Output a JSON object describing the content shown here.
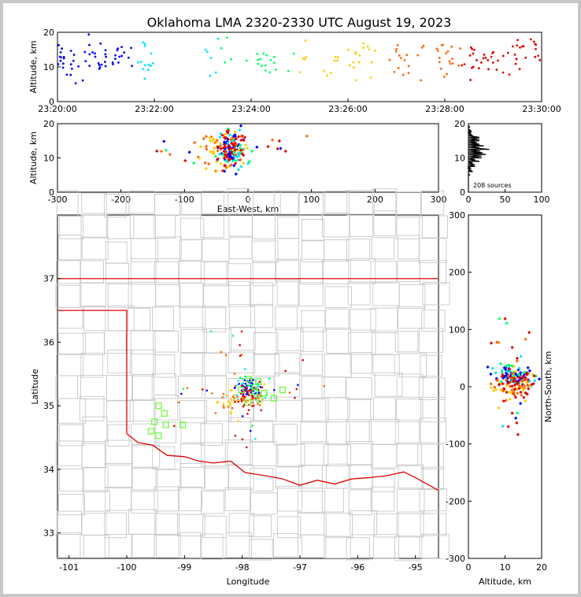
{
  "title": "Oklahoma LMA 2320-2330 UTC August 19, 2023",
  "colors": {
    "frame": "#c8c8c8",
    "county_lines": "#c8c8c8",
    "state_border": "#e00000",
    "station_marker": "#66ff33",
    "time_ramp": [
      "#0000ff",
      "#00e5ff",
      "#00ff66",
      "#ffcc00",
      "#ff6600",
      "#e00000"
    ]
  },
  "chart_data": [
    {
      "id": "time-height",
      "type": "scatter",
      "ylabel": "Altitude, km",
      "xlabel": "",
      "x_ticks": [
        "23:20:00",
        "23:22:00",
        "23:24:00",
        "23:26:00",
        "23:28:00",
        "23:30:00"
      ],
      "xlim_minutes": [
        0,
        10
      ],
      "ylim": [
        0,
        20
      ],
      "y_ticks": [
        0,
        10,
        20
      ]
    },
    {
      "id": "ew-altitude",
      "type": "scatter",
      "xlabel": "East-West, km",
      "ylabel": "Altitude, km",
      "xlim": [
        -300,
        300
      ],
      "x_ticks": [
        -300,
        -200,
        -100,
        0,
        100,
        200,
        300
      ],
      "ylim": [
        0,
        20
      ],
      "y_ticks": [
        0,
        10,
        20
      ]
    },
    {
      "id": "altitude-histogram",
      "type": "bar",
      "annotation": "208 sources",
      "xlim": [
        0,
        100
      ],
      "x_ticks": [
        0,
        50,
        100
      ],
      "ylim": [
        0,
        20
      ],
      "y_ticks": [
        0,
        10,
        20
      ]
    },
    {
      "id": "plan-view",
      "type": "scatter",
      "xlabel": "Longitude",
      "ylabel": "Latitude",
      "xlim": [
        -101.2,
        -94.6
      ],
      "ylim": [
        32.6,
        38.0
      ],
      "x_ticks": [
        -101,
        -100,
        -99,
        -98,
        -97,
        -96,
        -95
      ],
      "y_ticks": [
        33,
        34,
        35,
        36,
        37
      ],
      "stations": [
        {
          "lon": -99.45,
          "lat": 35.0
        },
        {
          "lon": -99.35,
          "lat": 34.88
        },
        {
          "lon": -99.52,
          "lat": 34.75
        },
        {
          "lon": -99.32,
          "lat": 34.7
        },
        {
          "lon": -99.58,
          "lat": 34.6
        },
        {
          "lon": -99.45,
          "lat": 34.53
        },
        {
          "lon": -99.03,
          "lat": 34.7
        },
        {
          "lon": -97.88,
          "lat": 35.42
        },
        {
          "lon": -97.72,
          "lat": 35.38
        },
        {
          "lon": -98.02,
          "lat": 35.25
        },
        {
          "lon": -97.78,
          "lat": 35.22
        },
        {
          "lon": -97.62,
          "lat": 35.2
        },
        {
          "lon": -97.45,
          "lat": 35.12
        },
        {
          "lon": -97.3,
          "lat": 35.25
        },
        {
          "lon": -97.9,
          "lat": 35.05
        },
        {
          "lon": -97.7,
          "lat": 35.1
        }
      ]
    },
    {
      "id": "altitude-ns",
      "type": "scatter",
      "xlabel": "Altitude, km",
      "ylabel": "North-South, km",
      "xlim": [
        0,
        20
      ],
      "x_ticks": [
        0,
        10,
        20
      ],
      "ylim": [
        -300,
        300
      ],
      "y_ticks": [
        -300,
        -200,
        -100,
        0,
        100,
        200,
        300
      ]
    }
  ]
}
